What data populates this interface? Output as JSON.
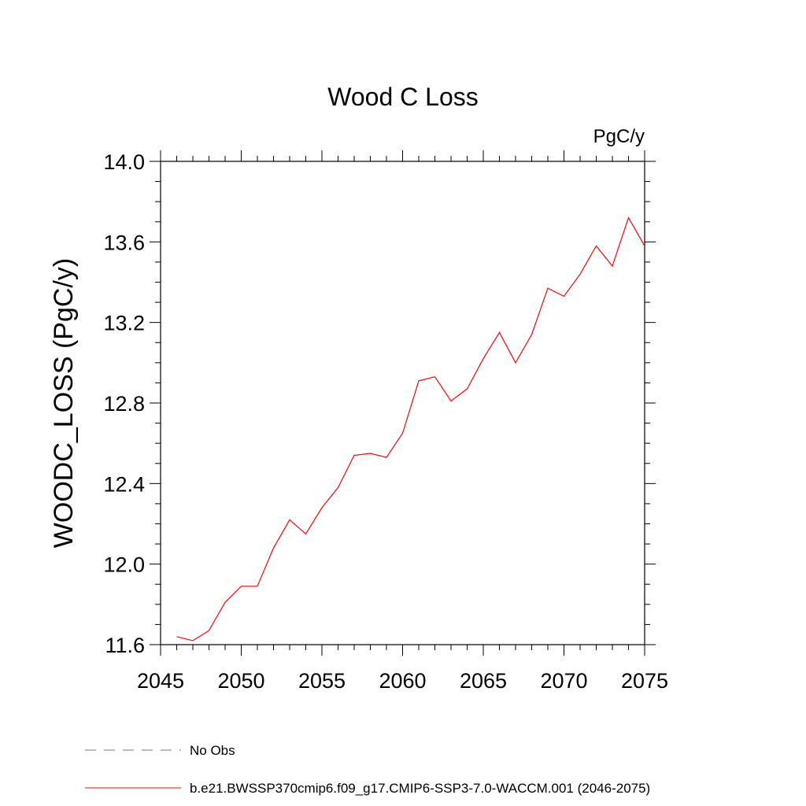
{
  "chart_data": {
    "type": "line",
    "title": "Wood C Loss",
    "units_label": "PgC/y",
    "xlabel": "",
    "ylabel": "WOODC_LOSS  (PgC/y)",
    "xlim": [
      2045,
      2075
    ],
    "ylim": [
      11.6,
      14.0
    ],
    "x_ticks": [
      2045,
      2050,
      2055,
      2060,
      2065,
      2070,
      2075
    ],
    "y_ticks": [
      11.6,
      12.0,
      12.4,
      12.8,
      13.2,
      13.6,
      14.0
    ],
    "y_tick_labels": [
      "11.6",
      "12.0",
      "12.4",
      "12.8",
      "13.2",
      "13.6",
      "14.0"
    ],
    "x_minor_step": 1,
    "y_minor_step": 0.1,
    "grid": false,
    "legend_position": "bottom-left",
    "series": [
      {
        "name": "b.e21.BWSSP370cmip6.f09_g17.CMIP6-SSP3-7.0-WACCM.001 (2046-2075)",
        "color": "#ff0000",
        "style": "solid",
        "x": [
          2046,
          2047,
          2048,
          2049,
          2050,
          2051,
          2052,
          2053,
          2054,
          2055,
          2056,
          2057,
          2058,
          2059,
          2060,
          2061,
          2062,
          2063,
          2064,
          2065,
          2066,
          2067,
          2068,
          2069,
          2070,
          2071,
          2072,
          2073,
          2074,
          2075
        ],
        "values": [
          11.64,
          11.62,
          11.67,
          11.81,
          11.89,
          11.89,
          12.08,
          12.22,
          12.15,
          12.28,
          12.38,
          12.54,
          12.55,
          12.53,
          12.65,
          12.91,
          12.93,
          12.81,
          12.87,
          13.02,
          13.15,
          13.0,
          13.14,
          13.37,
          13.33,
          13.44,
          13.58,
          13.48,
          13.72,
          13.58
        ]
      }
    ],
    "legend": [
      {
        "label": "No Obs",
        "color": "#7a6fb0",
        "style": "dashed"
      },
      {
        "label": "b.e21.BWSSP370cmip6.f09_g17.CMIP6-SSP3-7.0-WACCM.001 (2046-2075)",
        "color": "#ff0000",
        "style": "solid"
      }
    ]
  }
}
